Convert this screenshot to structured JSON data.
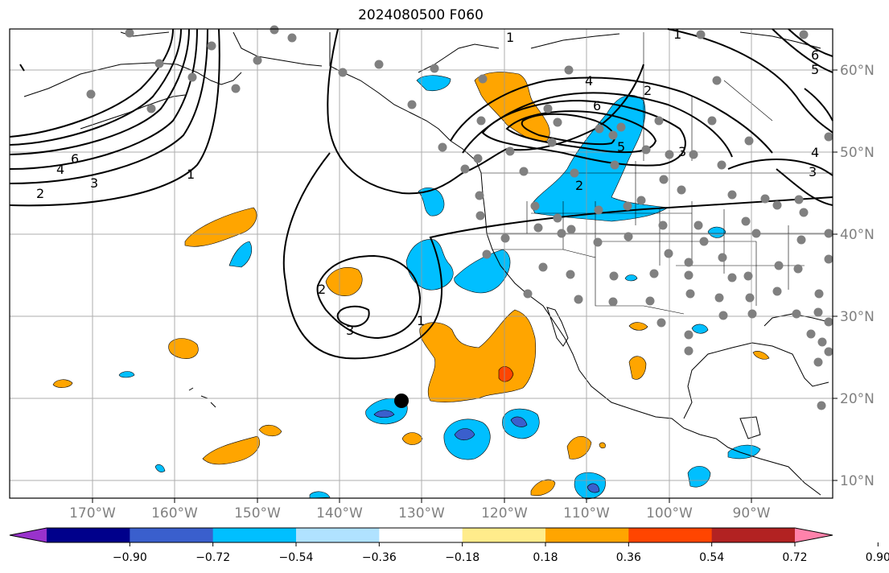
{
  "title": "2024080500 F060",
  "map": {
    "lon_ticks": [
      "170°W",
      "160°W",
      "150°W",
      "140°W",
      "130°W",
      "120°W",
      "110°W",
      "100°W",
      "90°W"
    ],
    "lat_ticks": [
      "60°N",
      "50°N",
      "40°N",
      "30°N",
      "20°N",
      "10°N"
    ],
    "contour_labels": [
      "1",
      "1",
      "1",
      "1",
      "2",
      "2",
      "2",
      "2",
      "3",
      "3",
      "3",
      "3",
      "4",
      "4",
      "4",
      "5",
      "5",
      "6",
      "6",
      "6"
    ],
    "colorbar": {
      "tick_labels": [
        "−0.90",
        "−0.72",
        "−0.54",
        "−0.36",
        "−0.18",
        "0.18",
        "0.36",
        "0.54",
        "0.72",
        "0.90"
      ],
      "colors": [
        "#9932cc",
        "#00008b",
        "#3a5fcd",
        "#00bfff",
        "#b0e2ff",
        "#ffffff",
        "#ffec8b",
        "#ffa500",
        "#ff4500",
        "#b22222",
        "#ff82ab"
      ],
      "extend": "both"
    }
  }
}
